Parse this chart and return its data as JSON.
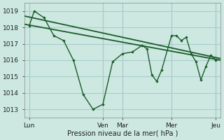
{
  "background_color": "#cce8e0",
  "grid_color": "#aacccc",
  "line_color": "#1a5c2a",
  "xlabel": "Pression niveau de la mer( hPa )",
  "ylim": [
    1012.5,
    1019.5
  ],
  "yticks": [
    1013,
    1014,
    1015,
    1016,
    1017,
    1018,
    1019
  ],
  "xlim": [
    0,
    20
  ],
  "day_positions": [
    0.5,
    8,
    10,
    15,
    19.5
  ],
  "day_labels": [
    "Lun",
    "Ven",
    "Mar",
    "Mer",
    "Jeu"
  ],
  "trend1_x": [
    0,
    20
  ],
  "trend1_y": [
    1018.7,
    1016.1
  ],
  "trend2_x": [
    0,
    20
  ],
  "trend2_y": [
    1018.2,
    1016.0
  ],
  "jagged_x": [
    0.5,
    1,
    2,
    3,
    4,
    5,
    6,
    7,
    8,
    9,
    10,
    11,
    12,
    12.5,
    13,
    13.5,
    14,
    15,
    15.5,
    16,
    16.5,
    17,
    17.5,
    18,
    18.5,
    19,
    19.5
  ],
  "jagged_y": [
    1018.1,
    1019.0,
    1018.6,
    1017.5,
    1017.2,
    1016.0,
    1013.9,
    1013.0,
    1013.3,
    1015.9,
    1016.4,
    1016.5,
    1016.9,
    1016.7,
    1015.1,
    1014.7,
    1015.4,
    1017.5,
    1017.5,
    1017.2,
    1017.4,
    1016.4,
    1015.9,
    1014.8,
    1015.6,
    1016.3,
    1016.0
  ]
}
